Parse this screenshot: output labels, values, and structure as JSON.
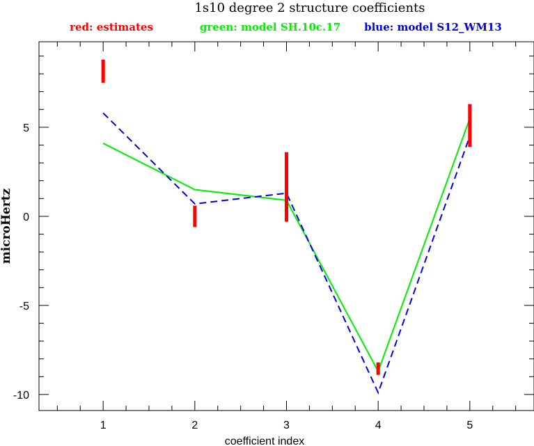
{
  "chart_data": {
    "type": "line",
    "title": "1s10 degree 2 structure coefficients",
    "xlabel": "coefficient index",
    "ylabel": "microHertz",
    "xlim": [
      0.3,
      5.7
    ],
    "ylim": [
      -10.9,
      9.8
    ],
    "x_ticks": [
      1,
      2,
      3,
      4,
      5
    ],
    "x_tick_labels": [
      "1",
      "2",
      "3",
      "4",
      "5"
    ],
    "y_ticks": [
      -10,
      -5,
      0,
      5
    ],
    "y_tick_labels": [
      "-10",
      "-5",
      "0",
      "5"
    ],
    "grid": false,
    "legend_position": "top",
    "estimates": {
      "legend_label": "red: estimates",
      "color": "#ff0000",
      "x": [
        1,
        2,
        3,
        4,
        5
      ],
      "low": [
        7.5,
        -0.6,
        -0.3,
        -8.9,
        3.9
      ],
      "high": [
        8.8,
        0.6,
        3.6,
        -8.2,
        6.3
      ]
    },
    "series": [
      {
        "legend_label": "green: model SH.10c.17",
        "color": "#00ee00",
        "style": "solid",
        "x": [
          1,
          2,
          3,
          4,
          5
        ],
        "values": [
          4.1,
          1.5,
          0.9,
          -8.7,
          5.5
        ]
      },
      {
        "legend_label": "blue: model S12_WM13",
        "color": "#0000dd",
        "style": "dashed",
        "x": [
          1,
          2,
          3,
          4,
          5
        ],
        "values": [
          5.8,
          0.7,
          1.3,
          -9.9,
          4.5
        ]
      }
    ]
  }
}
